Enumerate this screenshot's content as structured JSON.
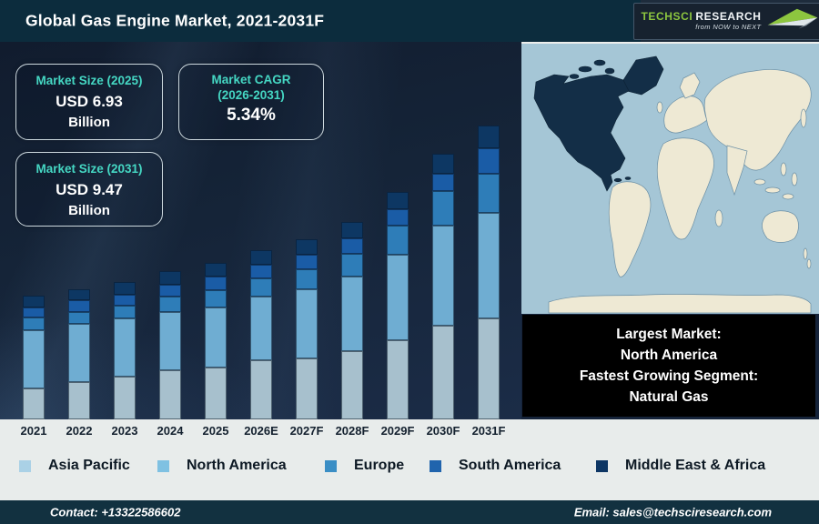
{
  "header": {
    "title": "Global Gas Engine Market, 2021-2031F"
  },
  "brand": {
    "name_primary": "TechSci",
    "name_secondary": "Research",
    "tagline": "from NOW to NEXT",
    "accent_green": "#8dc63f"
  },
  "stats": [
    {
      "title": "Market Size (2025)",
      "value": "USD 6.93",
      "unit": "Billion"
    },
    {
      "title": "Market CAGR (2026-2031)",
      "value": "5.34%",
      "unit": ""
    },
    {
      "title": "Market Size (2031)",
      "value": "USD 9.47",
      "unit": "Billion"
    }
  ],
  "chart_data": {
    "type": "bar",
    "stacked": true,
    "title": "Global Gas Engine Market, 2021-2031F",
    "categories": [
      "2021",
      "2022",
      "2023",
      "2024",
      "2025",
      "2026E",
      "2027F",
      "2028F",
      "2029F",
      "2030F",
      "2031F"
    ],
    "series": [
      {
        "name": "Asia Pacific",
        "color": "#a7c0cd",
        "legend_color": "#aad1e6",
        "values": [
          34,
          41,
          47,
          54,
          57,
          65,
          67,
          75,
          87,
          103,
          111
        ]
      },
      {
        "name": "North America",
        "color": "#6fadd2",
        "legend_color": "#7fc1e2",
        "values": [
          64,
          64,
          64,
          64,
          66,
          70,
          76,
          82,
          94,
          110,
          116
        ]
      },
      {
        "name": "Europe",
        "color": "#2e7db8",
        "legend_color": "#3a8ec5",
        "values": [
          14,
          13,
          14,
          17,
          19,
          20,
          22,
          25,
          32,
          38,
          43
        ]
      },
      {
        "name": "South America",
        "color": "#1a5ca6",
        "legend_color": "#2064ad",
        "values": [
          11,
          13,
          12,
          13,
          15,
          15,
          16,
          17,
          18,
          19,
          28
        ]
      },
      {
        "name": "Middle East & Africa",
        "color": "#0d3763",
        "legend_color": "#0d3664",
        "values": [
          13,
          12,
          14,
          15,
          15,
          16,
          17,
          18,
          19,
          22,
          25
        ]
      }
    ],
    "units": "relative segment heights as drawn (no value axis shown in figure)",
    "value_axis_shown": false,
    "grid": false,
    "legend_position": "bottom",
    "xlabel": "",
    "ylabel": ""
  },
  "map": {
    "highlight_region": "North America",
    "ocean_color": "#a5c6d6",
    "land_color": "#eee9d4",
    "highlight_color": "#132e47"
  },
  "info_box": {
    "lines": [
      "Largest Market:",
      "North America",
      "Fastest Growing Segment:",
      "Natural Gas"
    ]
  },
  "footer": {
    "contact": "Contact: +13322586602",
    "email": "Email: sales@techsciresearch.com"
  },
  "colors": {
    "header_bg": "#0c2c3d",
    "chart_bg": "#15233a",
    "accent_teal": "#45d7c3",
    "strip_bg": "#e8eceb",
    "footer_bg": "#123140",
    "info_box_bg": "#000000"
  }
}
